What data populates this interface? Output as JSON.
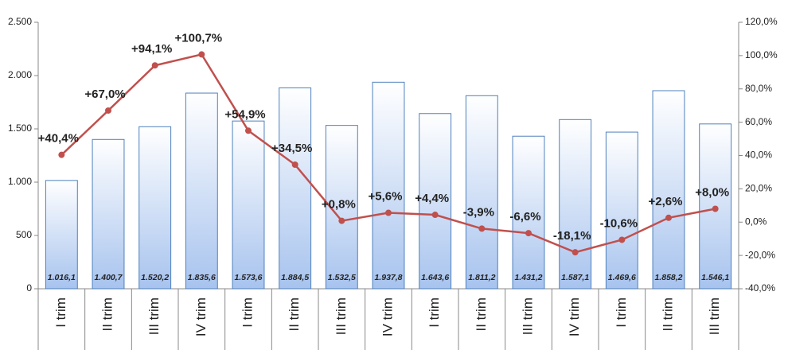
{
  "chart_data": {
    "type": "bar_line",
    "categories": [
      "I trim",
      "II trim",
      "III trim",
      "IV trim",
      "I trim",
      "II trim",
      "III trim",
      "IV trim",
      "I trim",
      "II trim",
      "III trim",
      "IV trim",
      "I trim",
      "II trim",
      "III trim"
    ],
    "series": [
      {
        "type": "bar",
        "color": "#4f81bd",
        "values": [
          1016.1,
          1400.7,
          1520.2,
          1835.6,
          1573.6,
          1884.5,
          1532.5,
          1937.8,
          1643.6,
          1811.2,
          1431.2,
          1587.1,
          1469.6,
          1858.2,
          1546.1
        ],
        "value_labels": [
          "1.016,1",
          "1.400,7",
          "1.520,2",
          "1.835,6",
          "1.573,6",
          "1.884,5",
          "1.532,5",
          "1.937,8",
          "1.643,6",
          "1.811,2",
          "1.431,2",
          "1.587,1",
          "1.469,6",
          "1.858,2",
          "1.546,1"
        ]
      },
      {
        "type": "line",
        "axis": "y2",
        "color": "#c0504d",
        "values": [
          40.4,
          67.0,
          94.1,
          100.7,
          54.9,
          34.5,
          0.8,
          5.6,
          4.4,
          -3.9,
          -6.6,
          -18.1,
          -10.6,
          2.6,
          8.0
        ],
        "value_labels": [
          "+40,4%",
          "+67,0%",
          "+94,1%",
          "+100,7%",
          "+54,9%",
          "+34,5%",
          "+0,8%",
          "+5,6%",
          "+4,4%",
          "-3,9%",
          "-6,6%",
          "-18,1%",
          "-10,6%",
          "+2,6%",
          "+8,0%"
        ]
      }
    ],
    "ylim": [
      0,
      2500
    ],
    "yticks": [
      0,
      500,
      {
        "value": 1000,
        "label": "1.000"
      },
      {
        "value": 1500,
        "label": "1.500"
      },
      {
        "value": 2000,
        "label": "2.000"
      },
      {
        "value": 2500,
        "label": "2.500"
      }
    ],
    "y2lim": [
      -40,
      120
    ],
    "y2ticks": [
      {
        "value": -40,
        "label": "-40,0%"
      },
      {
        "value": -20,
        "label": "-20,0%"
      },
      {
        "value": 0,
        "label": "0,0%"
      },
      {
        "value": 20,
        "label": "20,0%"
      },
      {
        "value": 40,
        "label": "40,0%"
      },
      {
        "value": 60,
        "label": "60,0%"
      },
      {
        "value": 80,
        "label": "80,0%"
      },
      {
        "value": 100,
        "label": "100,0%"
      },
      {
        "value": 120,
        "label": "120,0%"
      }
    ]
  }
}
